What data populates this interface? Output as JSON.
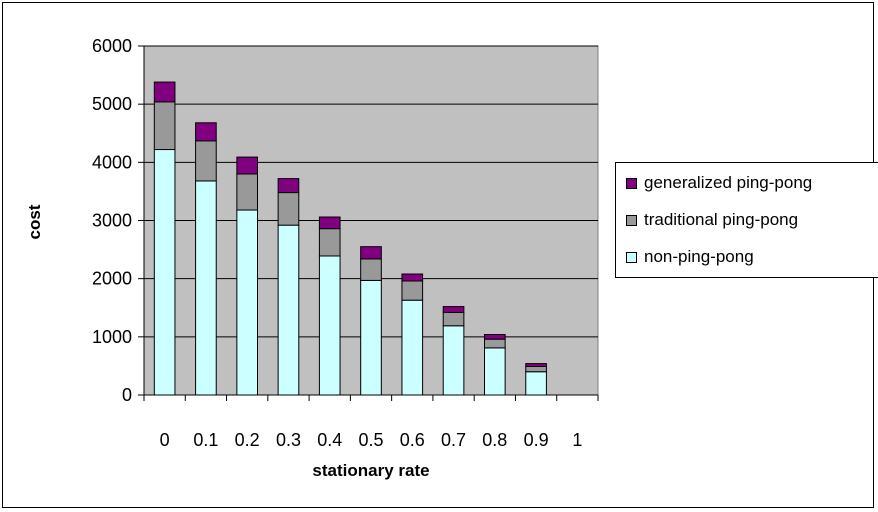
{
  "chart_data": {
    "type": "bar",
    "stacked": true,
    "xlabel": "stationary rate",
    "ylabel": "cost",
    "ylim": [
      0,
      6000
    ],
    "yticks": [
      0,
      1000,
      2000,
      3000,
      4000,
      5000,
      6000
    ],
    "categories": [
      "0",
      "0.1",
      "0.2",
      "0.3",
      "0.4",
      "0.5",
      "0.6",
      "0.7",
      "0.8",
      "0.9",
      "1"
    ],
    "series": [
      {
        "name": "non-ping-pong",
        "color": "#ccffff",
        "values": [
          4220,
          3680,
          3180,
          2920,
          2390,
          1970,
          1630,
          1190,
          810,
          400,
          0
        ]
      },
      {
        "name": "traditional ping-pong",
        "color": "#999999",
        "values": [
          820,
          690,
          620,
          560,
          470,
          370,
          330,
          230,
          150,
          90,
          0
        ]
      },
      {
        "name": "generalized ping-pong",
        "color": "#800080",
        "values": [
          340,
          310,
          290,
          240,
          200,
          210,
          120,
          100,
          80,
          50,
          0
        ]
      }
    ],
    "grid": true,
    "plot_background": "#c0c0c0",
    "legend_position": "right"
  }
}
